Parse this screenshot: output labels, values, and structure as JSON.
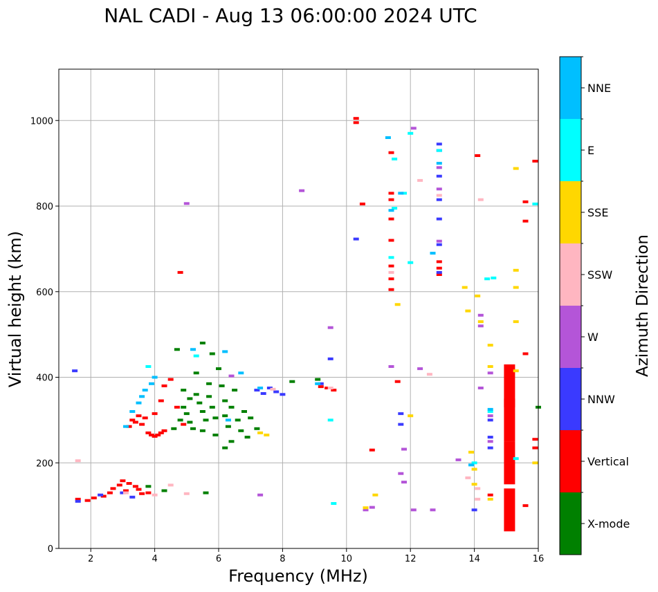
{
  "chart_data": {
    "type": "scatter",
    "title": "NAL CADI - Aug 13 06:00:00 2024 UTC",
    "xlabel": "Frequency (MHz)",
    "ylabel": "Virtual height (km)",
    "xlim": [
      1,
      16
    ],
    "ylim": [
      0,
      1120
    ],
    "xticks": [
      2,
      4,
      6,
      8,
      10,
      12,
      14,
      16
    ],
    "yticks": [
      0,
      200,
      400,
      600,
      800,
      1000
    ],
    "grid": true,
    "colorbar": {
      "label": "Azimuth Direction",
      "categories": [
        {
          "name": "X-mode",
          "color": "#008000"
        },
        {
          "name": "Vertical",
          "color": "#ff0000"
        },
        {
          "name": "NNW",
          "color": "#3a3aff"
        },
        {
          "name": "W",
          "color": "#b455d8"
        },
        {
          "name": "SSW",
          "color": "#ffb6c1"
        },
        {
          "name": "SSE",
          "color": "#ffd700"
        },
        {
          "name": "E",
          "color": "#00ffff"
        },
        {
          "name": "NNE",
          "color": "#00bfff"
        }
      ]
    },
    "series": [
      {
        "name": "X-mode",
        "color": "#008000",
        "points": [
          [
            3.8,
            145
          ],
          [
            4.3,
            135
          ],
          [
            4.6,
            280
          ],
          [
            4.8,
            300
          ],
          [
            4.9,
            330
          ],
          [
            5.0,
            315
          ],
          [
            5.1,
            350
          ],
          [
            5.1,
            295
          ],
          [
            5.2,
            280
          ],
          [
            5.3,
            360
          ],
          [
            5.4,
            340
          ],
          [
            5.5,
            320
          ],
          [
            5.5,
            275
          ],
          [
            5.6,
            300
          ],
          [
            5.7,
            385
          ],
          [
            5.7,
            355
          ],
          [
            5.8,
            330
          ],
          [
            5.9,
            305
          ],
          [
            5.9,
            265
          ],
          [
            6.0,
            420
          ],
          [
            6.1,
            380
          ],
          [
            6.2,
            345
          ],
          [
            6.2,
            310
          ],
          [
            6.3,
            285
          ],
          [
            6.4,
            250
          ],
          [
            6.4,
            330
          ],
          [
            6.5,
            370
          ],
          [
            6.6,
            300
          ],
          [
            6.7,
            275
          ],
          [
            6.8,
            320
          ],
          [
            6.9,
            260
          ],
          [
            7.0,
            305
          ],
          [
            7.2,
            280
          ],
          [
            6.2,
            235
          ],
          [
            5.8,
            455
          ],
          [
            5.5,
            480
          ],
          [
            5.3,
            410
          ],
          [
            4.9,
            370
          ],
          [
            4.7,
            465
          ],
          [
            5.6,
            130
          ],
          [
            8.3,
            390
          ],
          [
            9.1,
            395
          ],
          [
            16.0,
            330
          ]
        ]
      },
      {
        "name": "Vertical",
        "color": "#ff0000",
        "points": [
          [
            1.6,
            115
          ],
          [
            1.9,
            112
          ],
          [
            2.1,
            118
          ],
          [
            2.4,
            122
          ],
          [
            2.6,
            130
          ],
          [
            2.7,
            140
          ],
          [
            2.9,
            148
          ],
          [
            3.0,
            158
          ],
          [
            3.1,
            135
          ],
          [
            3.2,
            152
          ],
          [
            3.4,
            145
          ],
          [
            3.5,
            138
          ],
          [
            3.6,
            128
          ],
          [
            3.8,
            130
          ],
          [
            3.2,
            285
          ],
          [
            3.3,
            300
          ],
          [
            3.4,
            295
          ],
          [
            3.5,
            310
          ],
          [
            3.6,
            290
          ],
          [
            3.7,
            305
          ],
          [
            3.8,
            270
          ],
          [
            3.9,
            265
          ],
          [
            4.0,
            262
          ],
          [
            4.1,
            265
          ],
          [
            4.2,
            270
          ],
          [
            4.3,
            275
          ],
          [
            4.0,
            315
          ],
          [
            4.2,
            345
          ],
          [
            4.3,
            380
          ],
          [
            4.5,
            395
          ],
          [
            4.7,
            330
          ],
          [
            4.9,
            290
          ],
          [
            4.8,
            645
          ],
          [
            9.2,
            378
          ],
          [
            9.4,
            375
          ],
          [
            9.6,
            370
          ],
          [
            10.3,
            1005
          ],
          [
            10.3,
            995
          ],
          [
            10.5,
            805
          ],
          [
            10.8,
            230
          ],
          [
            11.4,
            925
          ],
          [
            11.4,
            830
          ],
          [
            11.4,
            815
          ],
          [
            11.4,
            770
          ],
          [
            11.4,
            720
          ],
          [
            11.4,
            660
          ],
          [
            11.4,
            630
          ],
          [
            11.4,
            605
          ],
          [
            11.6,
            390
          ],
          [
            12.9,
            670
          ],
          [
            12.9,
            655
          ],
          [
            12.9,
            640
          ],
          [
            14.1,
            918
          ],
          [
            14.5,
            125
          ],
          [
            15.1,
            380
          ],
          [
            15.1,
            300
          ],
          [
            15.1,
            200
          ],
          [
            15.1,
            90
          ],
          [
            15.6,
            810
          ],
          [
            15.6,
            765
          ],
          [
            15.6,
            455
          ],
          [
            15.6,
            100
          ],
          [
            15.9,
            905
          ],
          [
            15.9,
            255
          ],
          [
            15.9,
            235
          ]
        ]
      },
      {
        "name": "NNW",
        "color": "#3a3aff",
        "points": [
          [
            1.5,
            415
          ],
          [
            1.6,
            110
          ],
          [
            2.3,
            125
          ],
          [
            3.0,
            130
          ],
          [
            3.3,
            120
          ],
          [
            7.2,
            370
          ],
          [
            7.4,
            362
          ],
          [
            7.6,
            375
          ],
          [
            7.8,
            366
          ],
          [
            8.0,
            360
          ],
          [
            9.2,
            385
          ],
          [
            9.5,
            443
          ],
          [
            10.3,
            723
          ],
          [
            11.7,
            315
          ],
          [
            11.7,
            290
          ],
          [
            12.9,
            945
          ],
          [
            12.9,
            930
          ],
          [
            12.9,
            870
          ],
          [
            12.9,
            815
          ],
          [
            12.9,
            770
          ],
          [
            12.9,
            710
          ],
          [
            12.9,
            645
          ],
          [
            14.5,
            260
          ],
          [
            14.5,
            300
          ],
          [
            14.5,
            235
          ],
          [
            14.0,
            90
          ]
        ]
      },
      {
        "name": "W",
        "color": "#b455d8",
        "points": [
          [
            5.0,
            806
          ],
          [
            6.4,
            403
          ],
          [
            7.3,
            125
          ],
          [
            8.6,
            836
          ],
          [
            9.5,
            516
          ],
          [
            10.6,
            90
          ],
          [
            10.8,
            96
          ],
          [
            11.4,
            425
          ],
          [
            11.8,
            232
          ],
          [
            11.8,
            155
          ],
          [
            11.7,
            175
          ],
          [
            12.1,
            982
          ],
          [
            12.1,
            90
          ],
          [
            12.3,
            420
          ],
          [
            12.7,
            90
          ],
          [
            12.9,
            890
          ],
          [
            12.9,
            840
          ],
          [
            12.9,
            718
          ],
          [
            13.5,
            207
          ],
          [
            14.2,
            545
          ],
          [
            14.2,
            520
          ],
          [
            14.2,
            375
          ],
          [
            14.5,
            410
          ],
          [
            14.5,
            310
          ],
          [
            14.5,
            250
          ]
        ]
      },
      {
        "name": "SSW",
        "color": "#ffb6c1",
        "points": [
          [
            1.6,
            205
          ],
          [
            3.1,
            130
          ],
          [
            4.0,
            125
          ],
          [
            4.5,
            148
          ],
          [
            5.0,
            128
          ],
          [
            7.7,
            372
          ],
          [
            9.5,
            375
          ],
          [
            11.4,
            645
          ],
          [
            12.3,
            860
          ],
          [
            12.6,
            407
          ],
          [
            12.9,
            825
          ],
          [
            13.8,
            165
          ],
          [
            14.1,
            140
          ],
          [
            14.2,
            815
          ],
          [
            14.1,
            115
          ]
        ]
      },
      {
        "name": "SSE",
        "color": "#ffd700",
        "points": [
          [
            7.3,
            270
          ],
          [
            7.5,
            265
          ],
          [
            10.6,
            95
          ],
          [
            10.9,
            125
          ],
          [
            11.6,
            570
          ],
          [
            12.0,
            310
          ],
          [
            13.9,
            225
          ],
          [
            14.0,
            185
          ],
          [
            14.0,
            150
          ],
          [
            13.7,
            610
          ],
          [
            13.8,
            555
          ],
          [
            14.1,
            590
          ],
          [
            14.2,
            530
          ],
          [
            14.5,
            475
          ],
          [
            14.5,
            425
          ],
          [
            14.5,
            115
          ],
          [
            15.3,
            888
          ],
          [
            15.3,
            650
          ],
          [
            15.3,
            610
          ],
          [
            15.3,
            530
          ],
          [
            15.3,
            415
          ],
          [
            15.9,
            200
          ]
        ]
      },
      {
        "name": "E",
        "color": "#00ffff",
        "points": [
          [
            3.8,
            425
          ],
          [
            5.3,
            450
          ],
          [
            9.5,
            300
          ],
          [
            9.6,
            105
          ],
          [
            11.4,
            680
          ],
          [
            11.5,
            795
          ],
          [
            11.5,
            910
          ],
          [
            11.8,
            830
          ],
          [
            12.0,
            668
          ],
          [
            12.0,
            970
          ],
          [
            12.9,
            930
          ],
          [
            14.0,
            200
          ],
          [
            14.5,
            320
          ],
          [
            14.6,
            632
          ],
          [
            14.4,
            630
          ],
          [
            15.3,
            210
          ],
          [
            15.9,
            805
          ]
        ]
      },
      {
        "name": "NNE",
        "color": "#00bfff",
        "points": [
          [
            3.1,
            285
          ],
          [
            3.3,
            320
          ],
          [
            3.5,
            340
          ],
          [
            3.6,
            355
          ],
          [
            3.7,
            370
          ],
          [
            3.9,
            385
          ],
          [
            4.0,
            400
          ],
          [
            5.2,
            465
          ],
          [
            6.2,
            460
          ],
          [
            6.3,
            300
          ],
          [
            6.7,
            410
          ],
          [
            7.3,
            375
          ],
          [
            9.1,
            385
          ],
          [
            11.3,
            960
          ],
          [
            11.4,
            790
          ],
          [
            11.7,
            830
          ],
          [
            12.7,
            690
          ],
          [
            12.9,
            900
          ],
          [
            13.9,
            195
          ],
          [
            14.5,
            325
          ]
        ]
      }
    ]
  }
}
